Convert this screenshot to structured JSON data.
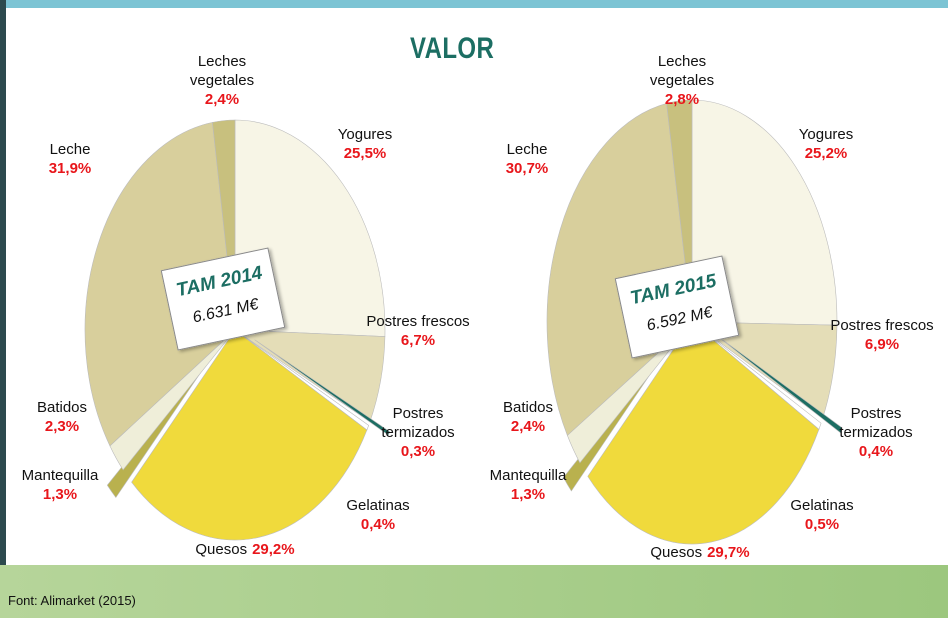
{
  "title": "VALOR",
  "source": "Font: Alimarket (2015)",
  "chart_data": [
    {
      "type": "pie",
      "center_title": "TAM 2014",
      "center_value": "6.631 M€",
      "categories": [
        "Yogures",
        "Postres frescos",
        "Postres termizados",
        "Gelatinas",
        "Quesos",
        "Mantequilla",
        "Batidos",
        "Leche",
        "Leches vegetales"
      ],
      "values": [
        25.5,
        6.7,
        0.3,
        0.4,
        29.2,
        1.3,
        2.3,
        31.9,
        2.4
      ],
      "value_labels": [
        "25,5%",
        "6,7%",
        "0,3%",
        "0,4%",
        "29,2%",
        "1,3%",
        "2,3%",
        "31,9%",
        "2,4%"
      ],
      "colors": [
        "#f7f5e6",
        "#e4ddb7",
        "#1c6e63",
        "#ffffff",
        "#f0da3c",
        "#b9b14e",
        "#efeed9",
        "#d8cf9c",
        "#c8c07e"
      ]
    },
    {
      "type": "pie",
      "center_title": "TAM 2015",
      "center_value": "6.592 M€",
      "categories": [
        "Yogures",
        "Postres frescos",
        "Postres termizados",
        "Gelatinas",
        "Quesos",
        "Mantequilla",
        "Batidos",
        "Leche",
        "Leches vegetales"
      ],
      "values": [
        25.2,
        6.9,
        0.4,
        0.5,
        29.7,
        1.3,
        2.4,
        30.7,
        2.8
      ],
      "value_labels": [
        "25,2%",
        "6,9%",
        "0,4%",
        "0,5%",
        "29,7%",
        "1,3%",
        "2,4%",
        "30,7%",
        "2,8%"
      ],
      "colors": [
        "#f7f5e6",
        "#e4ddb7",
        "#1c6e63",
        "#ffffff",
        "#f0da3c",
        "#b9b14e",
        "#efeed9",
        "#d8cf9c",
        "#c8c07e"
      ]
    }
  ]
}
